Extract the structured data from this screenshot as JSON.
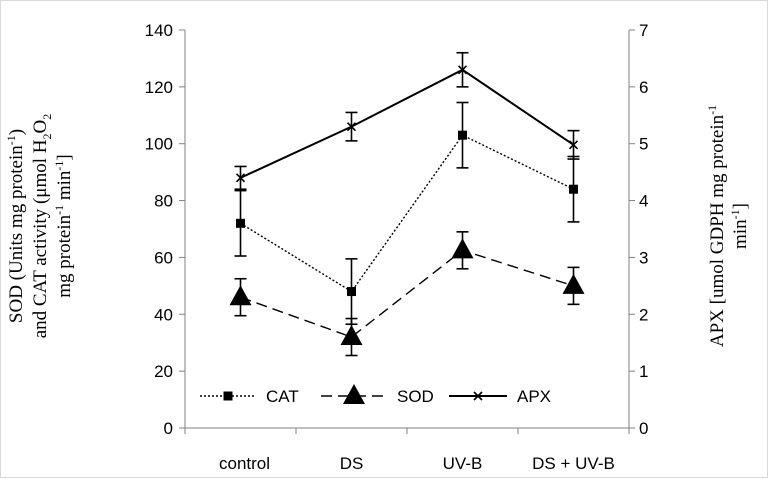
{
  "chart_data": {
    "type": "line",
    "categories": [
      "control",
      "DS",
      "UV-B",
      "DS + UV-B"
    ],
    "left_axis": {
      "min": 0,
      "max": 140,
      "step": 20,
      "ticks": [
        "0",
        "20",
        "40",
        "60",
        "80",
        "100",
        "120",
        "140"
      ],
      "label_line1": "SOD (Units mg  protein",
      "label_line1_sup": "-1",
      "label_line1_end": ")",
      "label_line2": "and  CAT activity  (μmol H",
      "label_line2_sub": "2",
      "label_line2_mid": "O",
      "label_line2_sub2": "2",
      "label_line3": "mg protein",
      "label_line3_sup": "-1",
      "label_line3_mid": " min",
      "label_line3_sup2": "-1",
      "label_line3_end": "]"
    },
    "right_axis": {
      "min": 0,
      "max": 7,
      "step": 1,
      "ticks": [
        "0",
        "1",
        "2",
        "3",
        "4",
        "5",
        "6",
        "7"
      ],
      "label_line1": "APX [umol GDPH mg protein",
      "label_line1_sup": "-1",
      "label_line2": "min",
      "label_line2_sup": "-1",
      "label_line2_end": "]"
    },
    "series": [
      {
        "name": "CAT",
        "axis": "left",
        "values": [
          72,
          48,
          103,
          84
        ],
        "errors": [
          11.5,
          11.5,
          11.5,
          11.5
        ],
        "marker": "square",
        "dash": "dotted",
        "color": "#000000"
      },
      {
        "name": "SOD",
        "axis": "left",
        "values": [
          46,
          32,
          62.5,
          50
        ],
        "errors": [
          6.5,
          6.5,
          6.5,
          6.5
        ],
        "marker": "triangle",
        "dash": "dashed",
        "color": "#000000"
      },
      {
        "name": "APX",
        "axis": "right",
        "values": [
          4.4,
          5.3,
          6.3,
          4.98
        ],
        "errors": [
          0.2,
          0.25,
          0.3,
          0.25
        ],
        "marker": "x",
        "dash": "solid",
        "color": "#000000"
      }
    ],
    "legend_placement": "bottom-left"
  }
}
